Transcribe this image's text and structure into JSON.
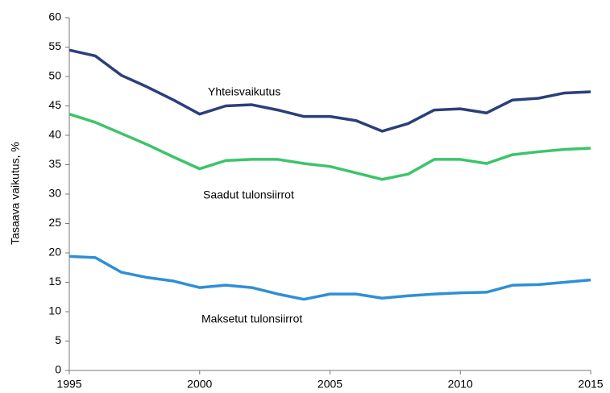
{
  "chart_data": {
    "type": "line",
    "y_label": "Tasaava vaikutus, %",
    "x": [
      1995,
      1996,
      1997,
      1998,
      1999,
      2000,
      2001,
      2002,
      2003,
      2004,
      2005,
      2006,
      2007,
      2008,
      2009,
      2010,
      2011,
      2012,
      2013,
      2014,
      2015
    ],
    "series": [
      {
        "name": "Yhteisvaikutus",
        "color": "#2b3f7a",
        "values": [
          54.5,
          53.5,
          50.2,
          48.2,
          46.0,
          43.6,
          45.0,
          45.2,
          44.3,
          43.2,
          43.2,
          42.5,
          40.7,
          42.0,
          44.3,
          44.5,
          43.8,
          46.0,
          46.3,
          47.2,
          47.4
        ]
      },
      {
        "name": "Saadut tulonsiirrot",
        "color": "#3cc46a",
        "values": [
          43.6,
          42.2,
          40.3,
          38.4,
          36.3,
          34.3,
          35.7,
          35.9,
          35.9,
          35.2,
          34.7,
          33.6,
          32.5,
          33.4,
          35.9,
          35.9,
          35.2,
          36.7,
          37.2,
          37.6,
          37.8
        ]
      },
      {
        "name": "Maksetut tulonsiirrot",
        "color": "#2f8fd6",
        "values": [
          19.4,
          19.2,
          16.7,
          15.8,
          15.2,
          14.1,
          14.5,
          14.1,
          13.0,
          12.1,
          13.0,
          13.0,
          12.3,
          12.7,
          13.0,
          13.2,
          13.3,
          14.5,
          14.6,
          15.0,
          15.4
        ]
      }
    ],
    "xlim": [
      1995,
      2015
    ],
    "xticks": [
      1995,
      2000,
      2005,
      2010,
      2015
    ],
    "ylim": [
      0,
      60
    ],
    "yticks": [
      0,
      5,
      10,
      15,
      20,
      25,
      30,
      35,
      40,
      45,
      50,
      55,
      60
    ],
    "grid": false
  }
}
